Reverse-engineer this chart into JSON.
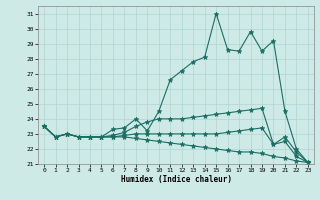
{
  "title": "",
  "xlabel": "Humidex (Indice chaleur)",
  "bg_color": "#ceeae6",
  "grid_color": "#b0d4d0",
  "line_color": "#1a6e64",
  "xlim": [
    -0.5,
    23.5
  ],
  "ylim": [
    21,
    31.5
  ],
  "xticks": [
    0,
    1,
    2,
    3,
    4,
    5,
    6,
    7,
    8,
    9,
    10,
    11,
    12,
    13,
    14,
    15,
    16,
    17,
    18,
    19,
    20,
    21,
    22,
    23
  ],
  "yticks": [
    21,
    22,
    23,
    24,
    25,
    26,
    27,
    28,
    29,
    30,
    31
  ],
  "line1_y": [
    23.5,
    22.8,
    23.0,
    22.8,
    22.8,
    22.8,
    23.3,
    23.4,
    24.0,
    23.2,
    24.5,
    26.6,
    27.2,
    27.8,
    28.1,
    31.0,
    28.6,
    28.5,
    29.8,
    28.5,
    29.2,
    24.5,
    22.0,
    21.1
  ],
  "line2_y": [
    23.5,
    22.8,
    23.0,
    22.8,
    22.8,
    22.8,
    22.9,
    23.1,
    23.5,
    23.8,
    24.0,
    24.0,
    24.0,
    24.1,
    24.2,
    24.3,
    24.4,
    24.5,
    24.6,
    24.7,
    22.3,
    22.5,
    21.5,
    21.1
  ],
  "line3_y": [
    23.5,
    22.8,
    23.0,
    22.8,
    22.8,
    22.8,
    22.8,
    22.8,
    22.7,
    22.6,
    22.5,
    22.4,
    22.3,
    22.2,
    22.1,
    22.0,
    21.9,
    21.8,
    21.8,
    21.7,
    21.5,
    21.4,
    21.2,
    21.1
  ],
  "line4_y": [
    23.5,
    22.8,
    23.0,
    22.8,
    22.8,
    22.8,
    22.8,
    22.9,
    23.0,
    23.0,
    23.0,
    23.0,
    23.0,
    23.0,
    23.0,
    23.0,
    23.1,
    23.2,
    23.3,
    23.4,
    22.3,
    22.8,
    21.8,
    21.1
  ]
}
